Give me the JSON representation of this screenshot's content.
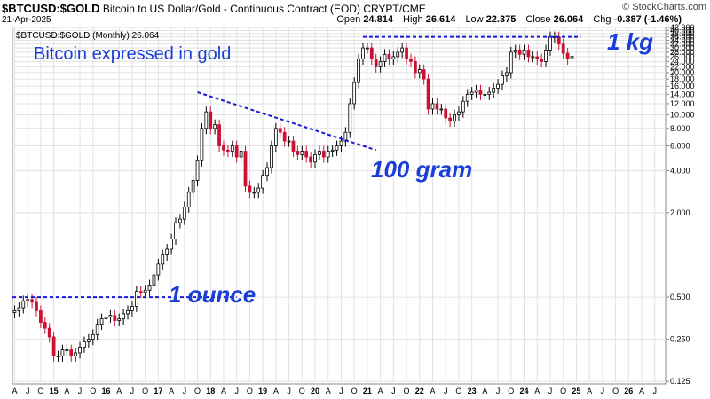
{
  "header": {
    "symbol": "$BTCUSD:$GOLD",
    "description": "Bitcoin to US Dollar/Gold - Continuous Contract (EOD)",
    "exchange": "CRYPT/CME",
    "date": "21-Apr-2025",
    "brand": "© StockCharts.com",
    "open_label": "Open",
    "open": "24.814",
    "high_label": "High",
    "high": "26.614",
    "low_label": "Low",
    "low": "22.375",
    "close_label": "Close",
    "close": "26.064",
    "chg_label": "Chg",
    "chg": "-0.387 (-1.46%)"
  },
  "legend_label": "$BTCUSD:$GOLD (Monthly) 26.064",
  "colors": {
    "up": "#ffffff",
    "down": "#cc1133",
    "trend": "#1a1ad4",
    "annotation": "#1a3fd6",
    "grid": "#e2e2e2"
  },
  "annotations": {
    "title": "Bitcoin expressed in gold",
    "kg": "1 kg",
    "gram": "100 gram",
    "ounce": "1 ounce"
  },
  "chart_data": {
    "type": "candlestick",
    "title": "Bitcoin expressed in gold",
    "scale": "log",
    "ylim": [
      0.12,
      42
    ],
    "y_ticks": [
      0.125,
      0.25,
      0.5,
      2,
      4,
      6,
      8,
      10,
      12,
      14,
      16,
      18,
      20,
      22,
      24,
      26,
      28,
      30,
      32,
      34,
      36,
      38,
      40,
      42
    ],
    "y_tick_labels": [
      "0.125",
      "0.250",
      "0.500",
      "2.000",
      "4.000",
      "6.000",
      "8.000",
      "10.000",
      "12.000",
      "14.000",
      "16.000",
      "18.000",
      "20.000",
      "22.000",
      "24.000",
      "26.000",
      "28.000",
      "30.000",
      "32.000",
      "34.000",
      "36.000",
      "38.000",
      "40.000",
      "42.000"
    ],
    "x_labels": [
      "A",
      "J",
      "O",
      "15",
      "A",
      "J",
      "O",
      "16",
      "A",
      "J",
      "O",
      "17",
      "A",
      "J",
      "O",
      "18",
      "A",
      "J",
      "O",
      "19",
      "A",
      "J",
      "O",
      "20",
      "A",
      "J",
      "O",
      "21",
      "A",
      "J",
      "O",
      "22",
      "A",
      "J",
      "O",
      "23",
      "A",
      "J",
      "O",
      "24",
      "A",
      "J",
      "O",
      "25",
      "A",
      "J",
      "O",
      "26",
      "A",
      "J"
    ],
    "x_start": "2014-04",
    "series": [
      {
        "values": [
          0.4,
          0.42,
          0.47,
          0.48,
          0.46,
          0.4,
          0.33,
          0.3,
          0.26,
          0.19,
          0.19,
          0.21,
          0.21,
          0.19,
          0.2,
          0.22,
          0.24,
          0.25,
          0.27,
          0.32,
          0.35,
          0.36,
          0.37,
          0.34,
          0.35,
          0.38,
          0.4,
          0.43,
          0.55,
          0.54,
          0.56,
          0.61,
          0.72,
          0.86,
          1.0,
          1.1,
          1.3,
          1.7,
          1.8,
          2.2,
          2.8,
          3.4,
          4.7,
          8.0,
          10.5,
          8.0,
          8.5,
          6.0,
          5.6,
          5.5,
          6.0,
          5.0,
          5.5,
          3.1,
          2.8,
          2.8,
          3.0,
          3.7,
          4.2,
          6.0,
          8.0,
          7.5,
          6.5,
          6.5,
          5.5,
          5.2,
          5.5,
          5.0,
          4.6,
          5.2,
          5.5,
          5.0,
          5.5,
          5.6,
          6.0,
          6.5,
          7.5,
          12.0,
          17.0,
          25.0,
          30.0,
          30.0,
          25.0,
          22.0,
          24.0,
          27.0,
          25.0,
          26.0,
          28.0,
          30.0,
          25.0,
          24.0,
          20.0,
          21.0,
          18.0,
          11.0,
          12.0,
          11.0,
          11.0,
          9.5,
          9.0,
          10.0,
          10.5,
          12.5,
          14.0,
          14.5,
          15.0,
          14.0,
          14.0,
          14.5,
          15.5,
          16.5,
          19.0,
          20.0,
          28.0,
          29.0,
          27.0,
          29.0,
          26.0,
          26.0,
          25.0,
          24.0,
          29.0,
          36.0,
          36.0,
          32.0,
          27.5,
          25.0,
          26.1
        ]
      }
    ]
  }
}
